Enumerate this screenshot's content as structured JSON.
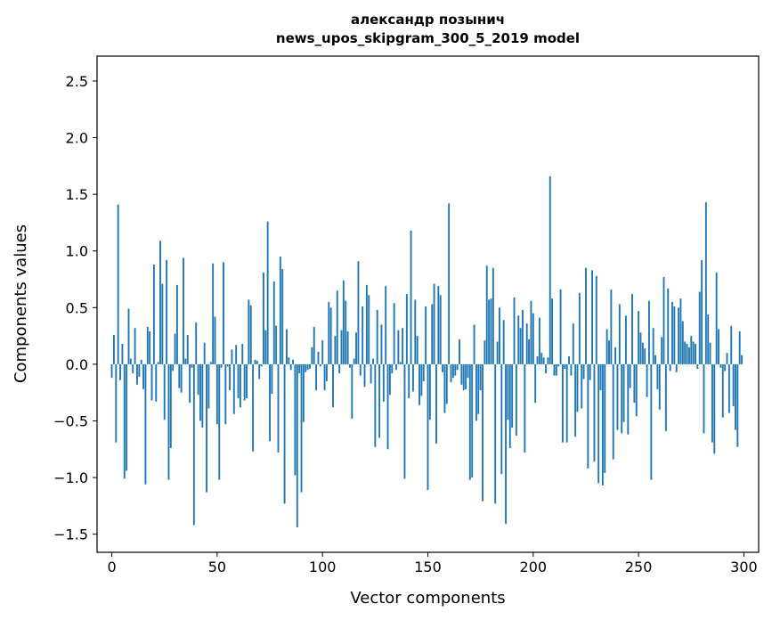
{
  "chart_data": {
    "type": "bar",
    "title_lines": [
      "александр позынич",
      "news_upos_skipgram_300_5_2019 model"
    ],
    "xlabel": "Vector components",
    "ylabel": "Components values",
    "xlim": [
      -7,
      307
    ],
    "ylim": [
      -1.66,
      2.72
    ],
    "xticks": [
      0,
      50,
      100,
      150,
      200,
      250,
      300
    ],
    "xtick_labels": [
      "0",
      "50",
      "100",
      "150",
      "200",
      "250",
      "300"
    ],
    "yticks": [
      -1.5,
      -1.0,
      -0.5,
      0.0,
      0.5,
      1.0,
      1.5,
      2.0,
      2.5
    ],
    "ytick_labels": [
      "−1.5",
      "−1.0",
      "−0.5",
      "0.0",
      "0.5",
      "1.0",
      "1.5",
      "2.0",
      "2.5"
    ],
    "bar_color": "#1f77b4",
    "values": [
      -0.12,
      0.26,
      -0.69,
      1.41,
      -0.14,
      0.18,
      -1.01,
      -0.94,
      0.49,
      0.05,
      -0.08,
      0.32,
      -0.18,
      -0.11,
      0.04,
      -0.22,
      -1.06,
      0.33,
      0.29,
      -0.32,
      0.88,
      -0.33,
      0.02,
      1.09,
      0.71,
      -0.49,
      0.92,
      -1.02,
      -0.74,
      -0.06,
      0.27,
      0.7,
      -0.21,
      -0.25,
      0.94,
      0.05,
      0.26,
      -0.34,
      -0.03,
      -1.42,
      0.37,
      -0.27,
      -0.5,
      -0.56,
      0.19,
      -1.13,
      -0.39,
      0.02,
      0.89,
      0.42,
      -0.53,
      -1.02,
      -0.03,
      0.9,
      -0.53,
      -0.02,
      -0.23,
      0.13,
      -0.44,
      0.17,
      -0.3,
      -0.38,
      0.18,
      -0.32,
      -0.3,
      0.57,
      0.52,
      -0.77,
      0.04,
      0.03,
      -0.13,
      -0.02,
      0.81,
      0.3,
      1.26,
      -0.68,
      -0.26,
      0.73,
      0.34,
      -0.78,
      0.95,
      0.84,
      -1.23,
      0.31,
      0.06,
      -0.05,
      0.04,
      -0.98,
      -1.44,
      -0.08,
      -1.13,
      -0.51,
      -0.07,
      -0.05,
      -0.04,
      0.15,
      0.33,
      -0.23,
      0.11,
      -0.02,
      0.21,
      -0.23,
      -0.15,
      0.55,
      0.5,
      -0.38,
      0.25,
      0.65,
      -0.08,
      0.3,
      0.74,
      0.56,
      0.29,
      -0.03,
      -0.48,
      0.05,
      0.28,
      0.91,
      -0.1,
      0.51,
      -0.2,
      0.7,
      0.61,
      -0.17,
      0.05,
      -0.73,
      0.48,
      -0.65,
      0.35,
      -0.33,
      0.69,
      -0.75,
      -0.27,
      -0.08,
      0.54,
      -0.05,
      0.3,
      0.02,
      0.32,
      -1.01,
      0.62,
      -0.3,
      1.18,
      -0.24,
      0.57,
      0.25,
      -0.36,
      -0.28,
      -0.15,
      0.51,
      -1.11,
      -0.49,
      0.53,
      0.71,
      -0.7,
      0.69,
      0.61,
      -0.07,
      -0.43,
      -0.35,
      1.42,
      -0.16,
      -0.12,
      -0.1,
      -0.05,
      0.22,
      -0.18,
      -0.23,
      -0.22,
      -0.12,
      -1.02,
      -1.0,
      0.35,
      -0.5,
      -0.44,
      -0.23,
      -1.21,
      0.21,
      0.87,
      0.57,
      0.58,
      0.85,
      -1.23,
      0.2,
      0.5,
      -0.97,
      0.39,
      -1.41,
      -0.49,
      -0.74,
      -0.56,
      0.59,
      -0.63,
      0.43,
      0.32,
      0.48,
      -0.78,
      0.36,
      0.22,
      0.56,
      0.45,
      -0.34,
      0.07,
      0.41,
      0.1,
      0.06,
      -0.08,
      0.06,
      1.66,
      0.58,
      -0.1,
      -0.1,
      -0.02,
      0.66,
      -0.69,
      -0.04,
      -0.69,
      0.07,
      -0.1,
      0.36,
      -0.64,
      -0.42,
      0.63,
      -0.39,
      -0.13,
      0.85,
      -0.92,
      -0.14,
      0.83,
      -0.86,
      0.78,
      -1.05,
      -0.23,
      -1.07,
      -0.96,
      0.31,
      0.21,
      0.66,
      -0.84,
      0.15,
      -0.58,
      0.53,
      -0.61,
      -0.51,
      0.43,
      -0.62,
      -0.21,
      0.62,
      -0.34,
      -0.46,
      0.47,
      0.28,
      0.19,
      0.14,
      -0.29,
      0.56,
      -1.02,
      0.32,
      0.08,
      -0.22,
      -0.4,
      0.24,
      0.77,
      -0.59,
      0.67,
      -0.06,
      0.55,
      0.51,
      -0.07,
      0.5,
      0.58,
      0.38,
      0.2,
      0.18,
      0.15,
      0.25,
      0.2,
      0.18,
      -0.04,
      0.64,
      0.92,
      -0.61,
      1.43,
      0.44,
      0.19,
      -0.69,
      -0.79,
      0.81,
      0.31,
      -0.03,
      -0.47,
      -0.06,
      0.1,
      -0.43,
      0.34,
      -0.37,
      -0.58,
      -0.73,
      0.29,
      0.08
    ]
  }
}
